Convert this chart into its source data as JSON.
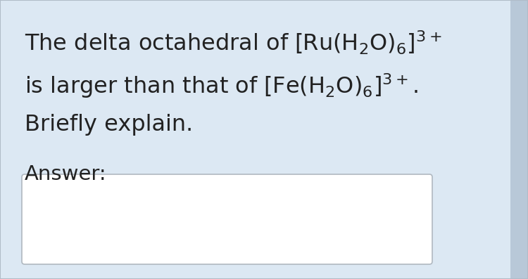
{
  "background_color": "#dce8f3",
  "text_color": "#222222",
  "answer_label": "Answer:",
  "answer_box_color": "#ffffff",
  "answer_box_border_color": "#b0b8c0",
  "font_size_main": 23,
  "font_size_answer": 21,
  "line1": "The delta octahedral of $\\mathregular{[Ru(H_2O)_6]^{3+}}$",
  "line2": "is larger than that of $\\mathregular{[Fe(H_2O)_6]^{3+}}$.",
  "line3": "Briefly explain.",
  "scrollbar_color": "#b8c8d8",
  "border_color": "#b0bcc8"
}
